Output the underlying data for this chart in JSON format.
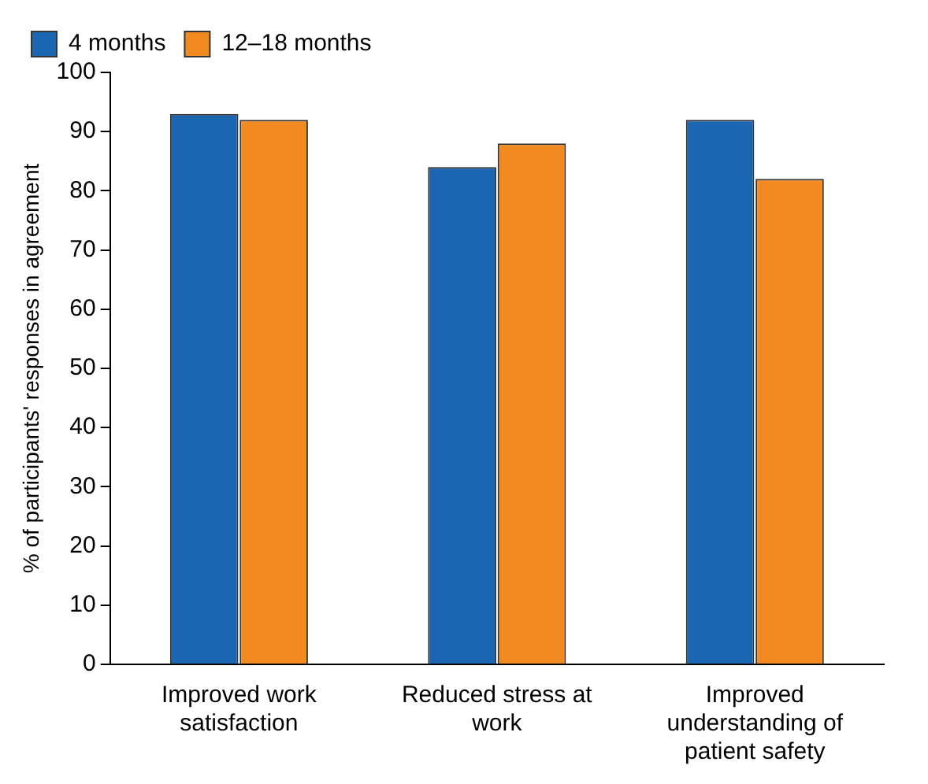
{
  "chart_data": {
    "type": "bar",
    "ylabel": "% of participants' responses in agreement",
    "categories": [
      "Improved work satisfaction",
      "Reduced stress at work",
      "Improved understanding of patient safety"
    ],
    "series": [
      {
        "name": "4 months",
        "color": "#1a66b3",
        "values": [
          93,
          84,
          92
        ]
      },
      {
        "name": "12–18 months",
        "color": "#f28a22",
        "values": [
          92,
          88,
          82
        ]
      }
    ],
    "ylim": [
      0,
      100
    ],
    "yticks": [
      0,
      10,
      20,
      30,
      40,
      50,
      60,
      70,
      80,
      90,
      100
    ],
    "grid": false,
    "legend": "top left"
  }
}
